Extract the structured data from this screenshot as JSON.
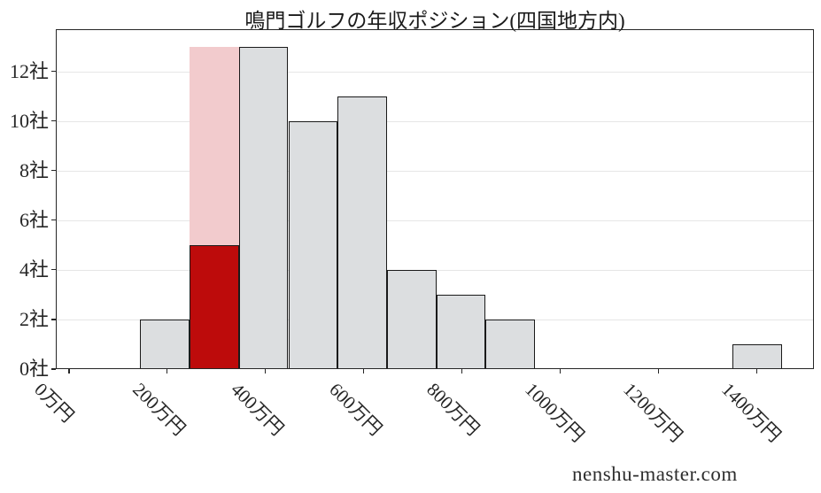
{
  "watermark": "nenshu-master.com",
  "chart_data": {
    "type": "bar",
    "subtype": "histogram",
    "title": "鳴門ゴルフの年収ポジション(四国地方内)",
    "xlabel": "",
    "ylabel": "",
    "x_unit": "万円",
    "y_unit": "社",
    "bin_edges": [
      145,
      245.5,
      346,
      446.5,
      547,
      647.5,
      748,
      848.5,
      949,
      1049.5,
      1150,
      1250.5,
      1351,
      1451.5
    ],
    "counts": [
      2,
      13,
      13,
      10,
      11,
      4,
      3,
      2,
      0,
      0,
      0,
      0,
      1
    ],
    "highlight": {
      "bin_index": 1,
      "bin_count": 13,
      "company_position_count": 5
    },
    "x_tick_values": [
      0,
      200,
      400,
      600,
      800,
      1000,
      1200,
      1400
    ],
    "x_tick_labels": [
      "0万円",
      "200万円",
      "400万円",
      "600万円",
      "800万円",
      "1000万円",
      "1200万円",
      "1400万円"
    ],
    "y_tick_values": [
      0,
      2,
      4,
      6,
      8,
      10,
      12
    ],
    "y_tick_labels": [
      "0社",
      "2社",
      "4社",
      "6社",
      "8社",
      "10社",
      "12社"
    ],
    "xlim": [
      -27,
      1517
    ],
    "ylim": [
      0,
      13.7
    ],
    "grid": "horizontal",
    "legend": "none",
    "colors": {
      "bar_fill": "#dcdee0",
      "bar_edge": "#1a1a1a",
      "highlighted_bin_fill": "#f2cbcd",
      "highlighted_position_fill": "#bd0b0b",
      "grid": "#e6e6e6",
      "axis": "#262626",
      "text": "#262626",
      "background": "#ffffff"
    }
  }
}
